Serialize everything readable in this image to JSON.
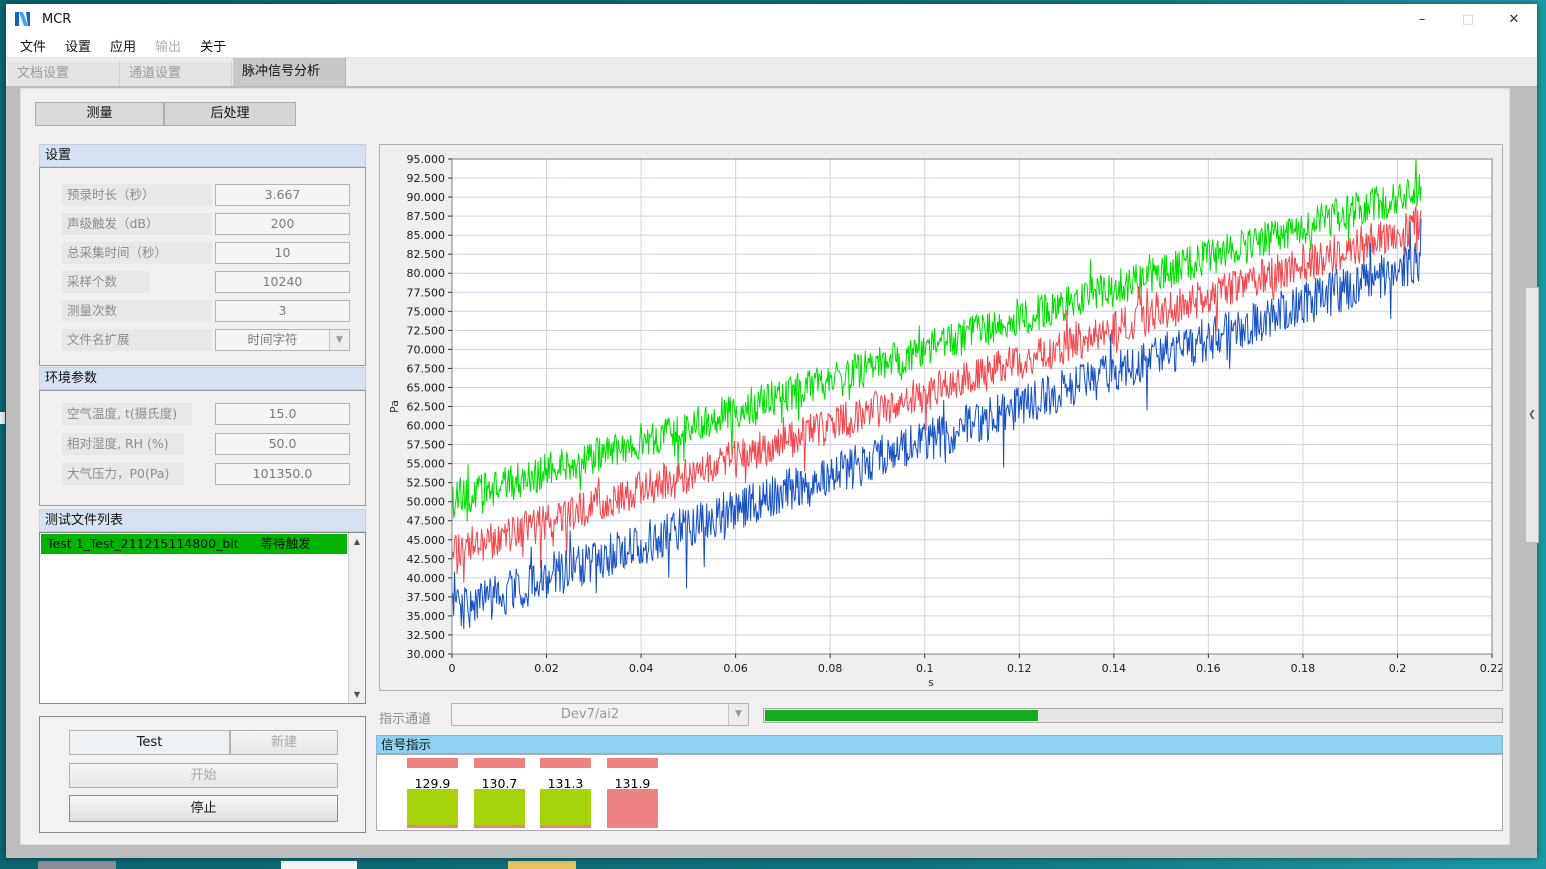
{
  "window": {
    "title": "MCR",
    "minimize_glyph": "–",
    "maximize_glyph": "□",
    "close_glyph": "✕"
  },
  "menu": {
    "items": [
      {
        "label": "文件",
        "enabled": true
      },
      {
        "label": "设置",
        "enabled": true
      },
      {
        "label": "应用",
        "enabled": true
      },
      {
        "label": "输出",
        "enabled": false
      },
      {
        "label": "关于",
        "enabled": true
      }
    ]
  },
  "tabs": {
    "items": [
      {
        "label": "文档设置",
        "active": false
      },
      {
        "label": "通道设置",
        "active": false
      },
      {
        "label": "脉冲信号分析",
        "active": true
      }
    ]
  },
  "subtabs": {
    "measure": "测量",
    "postprocess": "后处理"
  },
  "settings": {
    "header": "设置",
    "fields": [
      {
        "label": "预录时长（秒）",
        "value": "3.667"
      },
      {
        "label": "声级触发（dB）",
        "value": "200"
      },
      {
        "label": "总采集时间（秒）",
        "value": "10"
      },
      {
        "label": "采样个数",
        "value": "10240"
      },
      {
        "label": "测量次数",
        "value": "3"
      },
      {
        "label": "文件名扩展",
        "value": "时间字符",
        "type": "dropdown"
      }
    ]
  },
  "environment": {
    "header": "环境参数",
    "fields": [
      {
        "label": "空气温度, t(摄氏度)",
        "value": "15.0"
      },
      {
        "label": "相对湿度, RH (%)",
        "value": "50.0"
      },
      {
        "label": "大气压力，P0(Pa)",
        "value": "101350.0"
      }
    ]
  },
  "file_list": {
    "header": "测试文件列表",
    "rows": [
      {
        "name": "Test 1_Test_211215114800_blt",
        "status": "等待触发",
        "row_color": "#00b400"
      }
    ]
  },
  "controls": {
    "test": "Test",
    "new": "新建",
    "start": "开始",
    "stop": "停止"
  },
  "indicator_channel": {
    "label": "指示通道",
    "value": "Dev7/ai2",
    "progress_percent": 37,
    "progress_color": "#12ae1c"
  },
  "signal_panel": {
    "header": "信号指示",
    "ok_color": "#a6d30a",
    "alarm_color": "#ee8181",
    "indicators": [
      {
        "value": "129.9",
        "state": "ok"
      },
      {
        "value": "130.7",
        "state": "ok"
      },
      {
        "value": "131.3",
        "state": "ok"
      },
      {
        "value": "131.9",
        "state": "alarm"
      }
    ]
  },
  "chart_data": {
    "type": "line",
    "title": "",
    "xlabel": "s",
    "ylabel": "Pa",
    "xlim": [
      0,
      0.22
    ],
    "ylim": [
      30,
      95
    ],
    "grid": true,
    "grid_color": "#ced0ea",
    "x_ticks": [
      0,
      0.02,
      0.04,
      0.06,
      0.08,
      0.1,
      0.12,
      0.14,
      0.16,
      0.18,
      0.2,
      0.22
    ],
    "y_ticks": [
      95,
      92.5,
      90,
      87.5,
      85,
      82.5,
      80,
      77.5,
      75,
      72.5,
      70,
      67.5,
      65,
      62.5,
      60,
      57.5,
      55,
      52.5,
      50,
      47.5,
      45,
      42.5,
      40,
      37.5,
      35,
      32.5,
      30
    ],
    "y_tick_decimals": 3,
    "series": [
      {
        "name": "channel-green",
        "color": "#00df00",
        "x_start": 0,
        "x_end": 0.205,
        "start_mean": 50.0,
        "end_mean": 91.0,
        "half_band": 2.4
      },
      {
        "name": "channel-red",
        "color": "#f4484e",
        "x_start": 0,
        "x_end": 0.205,
        "start_mean": 43.0,
        "end_mean": 86.5,
        "half_band": 2.5
      },
      {
        "name": "channel-blue",
        "color": "#1853c6",
        "x_start": 0,
        "x_end": 0.205,
        "start_mean": 35.5,
        "end_mean": 81.5,
        "half_band": 2.9
      }
    ]
  }
}
